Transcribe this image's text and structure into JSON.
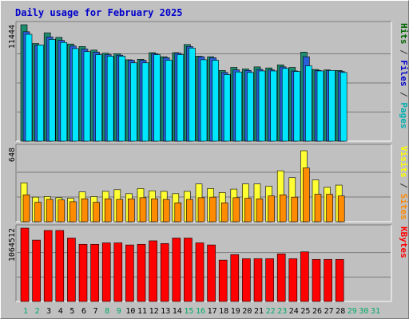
{
  "chart_data": {
    "type": "bar",
    "title": "Daily usage for February 2025",
    "x": [
      "1",
      "2",
      "3",
      "4",
      "5",
      "6",
      "7",
      "8",
      "9",
      "10",
      "11",
      "12",
      "13",
      "14",
      "15",
      "16",
      "17",
      "18",
      "19",
      "20",
      "21",
      "22",
      "23",
      "24",
      "25",
      "26",
      "27",
      "28",
      "29",
      "30",
      "31"
    ],
    "panels": [
      {
        "name": "hits-files-pages",
        "ymax": 11444,
        "ymax_label": "11444",
        "axis_labels": [
          {
            "text": "Hits",
            "color": "#006600"
          },
          {
            "text": " / ",
            "color": "#333333"
          },
          {
            "text": "Files",
            "color": "#0000cc"
          },
          {
            "text": " / ",
            "color": "#333333"
          },
          {
            "text": "Pages",
            "color": "#00b0b0"
          }
        ],
        "series": [
          {
            "name": "Hits",
            "color": "#1e8c6e",
            "values": [
              11444,
              9600,
              10650,
              10200,
              9550,
              9300,
              8950,
              8650,
              8600,
              8000,
              8050,
              8700,
              8300,
              8700,
              9500,
              8350,
              8300,
              6950,
              7250,
              7100,
              7300,
              7200,
              7500,
              7250,
              8750,
              7050,
              7000,
              6950,
              null,
              null,
              null
            ]
          },
          {
            "name": "Files",
            "color": "#2b5fd9",
            "values": [
              10750,
              9450,
              10250,
              9900,
              9350,
              9050,
              8750,
              8500,
              8450,
              7950,
              7950,
              8600,
              8200,
              8650,
              9300,
              8300,
              8200,
              6750,
              7000,
              6950,
              7050,
              7000,
              7300,
              6900,
              8300,
              6950,
              6950,
              6850,
              null,
              null,
              null
            ]
          },
          {
            "name": "Pages",
            "color": "#00e6ff",
            "values": [
              10500,
              9450,
              10000,
              9700,
              9100,
              8800,
              8500,
              8350,
              8350,
              7700,
              7700,
              8500,
              7950,
              8500,
              9150,
              8000,
              7950,
              6550,
              6800,
              6750,
              6900,
              6900,
              7150,
              6850,
              7400,
              6900,
              6950,
              6750,
              null,
              null,
              null
            ]
          }
        ]
      },
      {
        "name": "visits-sites",
        "ymax": 648,
        "ymax_label": "648",
        "axis_labels": [
          {
            "text": "Visits",
            "color": "#ffff00"
          },
          {
            "text": " / ",
            "color": "#333333"
          },
          {
            "text": "Sites",
            "color": "#ff8800"
          }
        ],
        "series": [
          {
            "name": "Visits",
            "color": "#ffff33",
            "values": [
              340,
              215,
              220,
              210,
              205,
              260,
              220,
              265,
              280,
              245,
              290,
              270,
              265,
              245,
              265,
              330,
              290,
              255,
              285,
              330,
              330,
              310,
              445,
              385,
              620,
              365,
              300,
              320,
              null,
              null,
              null
            ]
          },
          {
            "name": "Sites",
            "color": "#ff8c00",
            "values": [
              235,
              170,
              195,
              190,
              175,
              200,
              170,
              200,
              195,
              200,
              210,
              200,
              195,
              165,
              195,
              210,
              215,
              165,
              210,
              205,
              200,
              225,
              235,
              215,
              470,
              240,
              240,
              225,
              null,
              null,
              null
            ]
          }
        ]
      },
      {
        "name": "kbytes",
        "ymax": 1064512,
        "ymax_label": "1064512",
        "axis_labels": [
          {
            "text": "KBytes",
            "color": "#ff0000"
          }
        ],
        "series": [
          {
            "name": "KBytes",
            "color": "#ff0000",
            "values": [
              1064512,
              890000,
              1030000,
              1030000,
              920000,
              830000,
              830000,
              850000,
              850000,
              820000,
              830000,
              880000,
              840000,
              920000,
              920000,
              850000,
              820000,
              600000,
              680000,
              620000,
              620000,
              620000,
              690000,
              620000,
              720000,
              610000,
              610000,
              610000,
              null,
              null,
              null
            ]
          }
        ]
      }
    ],
    "x_label_colors": {
      "weekend": "#00aa66",
      "weekday": "#000000",
      "no_data": "#00aa66"
    },
    "weekend_days": [
      "1",
      "2",
      "8",
      "9",
      "15",
      "16",
      "22",
      "23",
      "29",
      "30"
    ]
  }
}
